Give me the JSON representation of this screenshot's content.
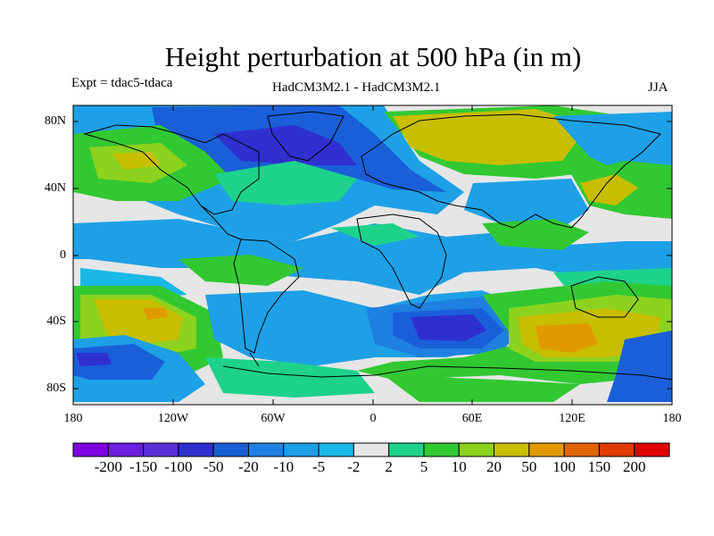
{
  "title": "Height perturbation at 500 hPa (in m)",
  "experiment": "Expt = tdac5-tdaca",
  "model": "HadCM3M2.1 - HadCM3M2.1",
  "season": "JJA",
  "axes": {
    "x_ticks": [
      "180",
      "120W",
      "60W",
      "0",
      "60E",
      "120E",
      "180"
    ],
    "y_ticks": [
      "80N",
      "40N",
      "0",
      "40S",
      "80S"
    ]
  },
  "colorbar": {
    "colors": [
      "#7f00e0",
      "#6a1ee0",
      "#5a2fd8",
      "#2f2fd0",
      "#1a5fd8",
      "#1e80e0",
      "#1ea0e6",
      "#1ab8e6",
      "#e6e6e6",
      "#1ed28c",
      "#32c832",
      "#8cd21e",
      "#c8be00",
      "#e09a00",
      "#e06400",
      "#e03c00",
      "#e00000"
    ],
    "labels": [
      "-200",
      "-150",
      "-100",
      "-50",
      "-20",
      "-10",
      "-5",
      "-2",
      "2",
      "5",
      "10",
      "20",
      "50",
      "100",
      "150",
      "200"
    ]
  },
  "colors": {
    "neutral": "#e6e6e6",
    "blue": "#1ea0e6",
    "blue_mid": "#1e80e0",
    "blue_deep": "#1a5fd8",
    "blue_strong": "#2f2fd0",
    "cyan": "#1ab8e6",
    "green_light": "#1ed28c",
    "green": "#32c832",
    "yellow_green": "#8cd21e",
    "yellow": "#c8be00",
    "orange": "#e09a00"
  }
}
